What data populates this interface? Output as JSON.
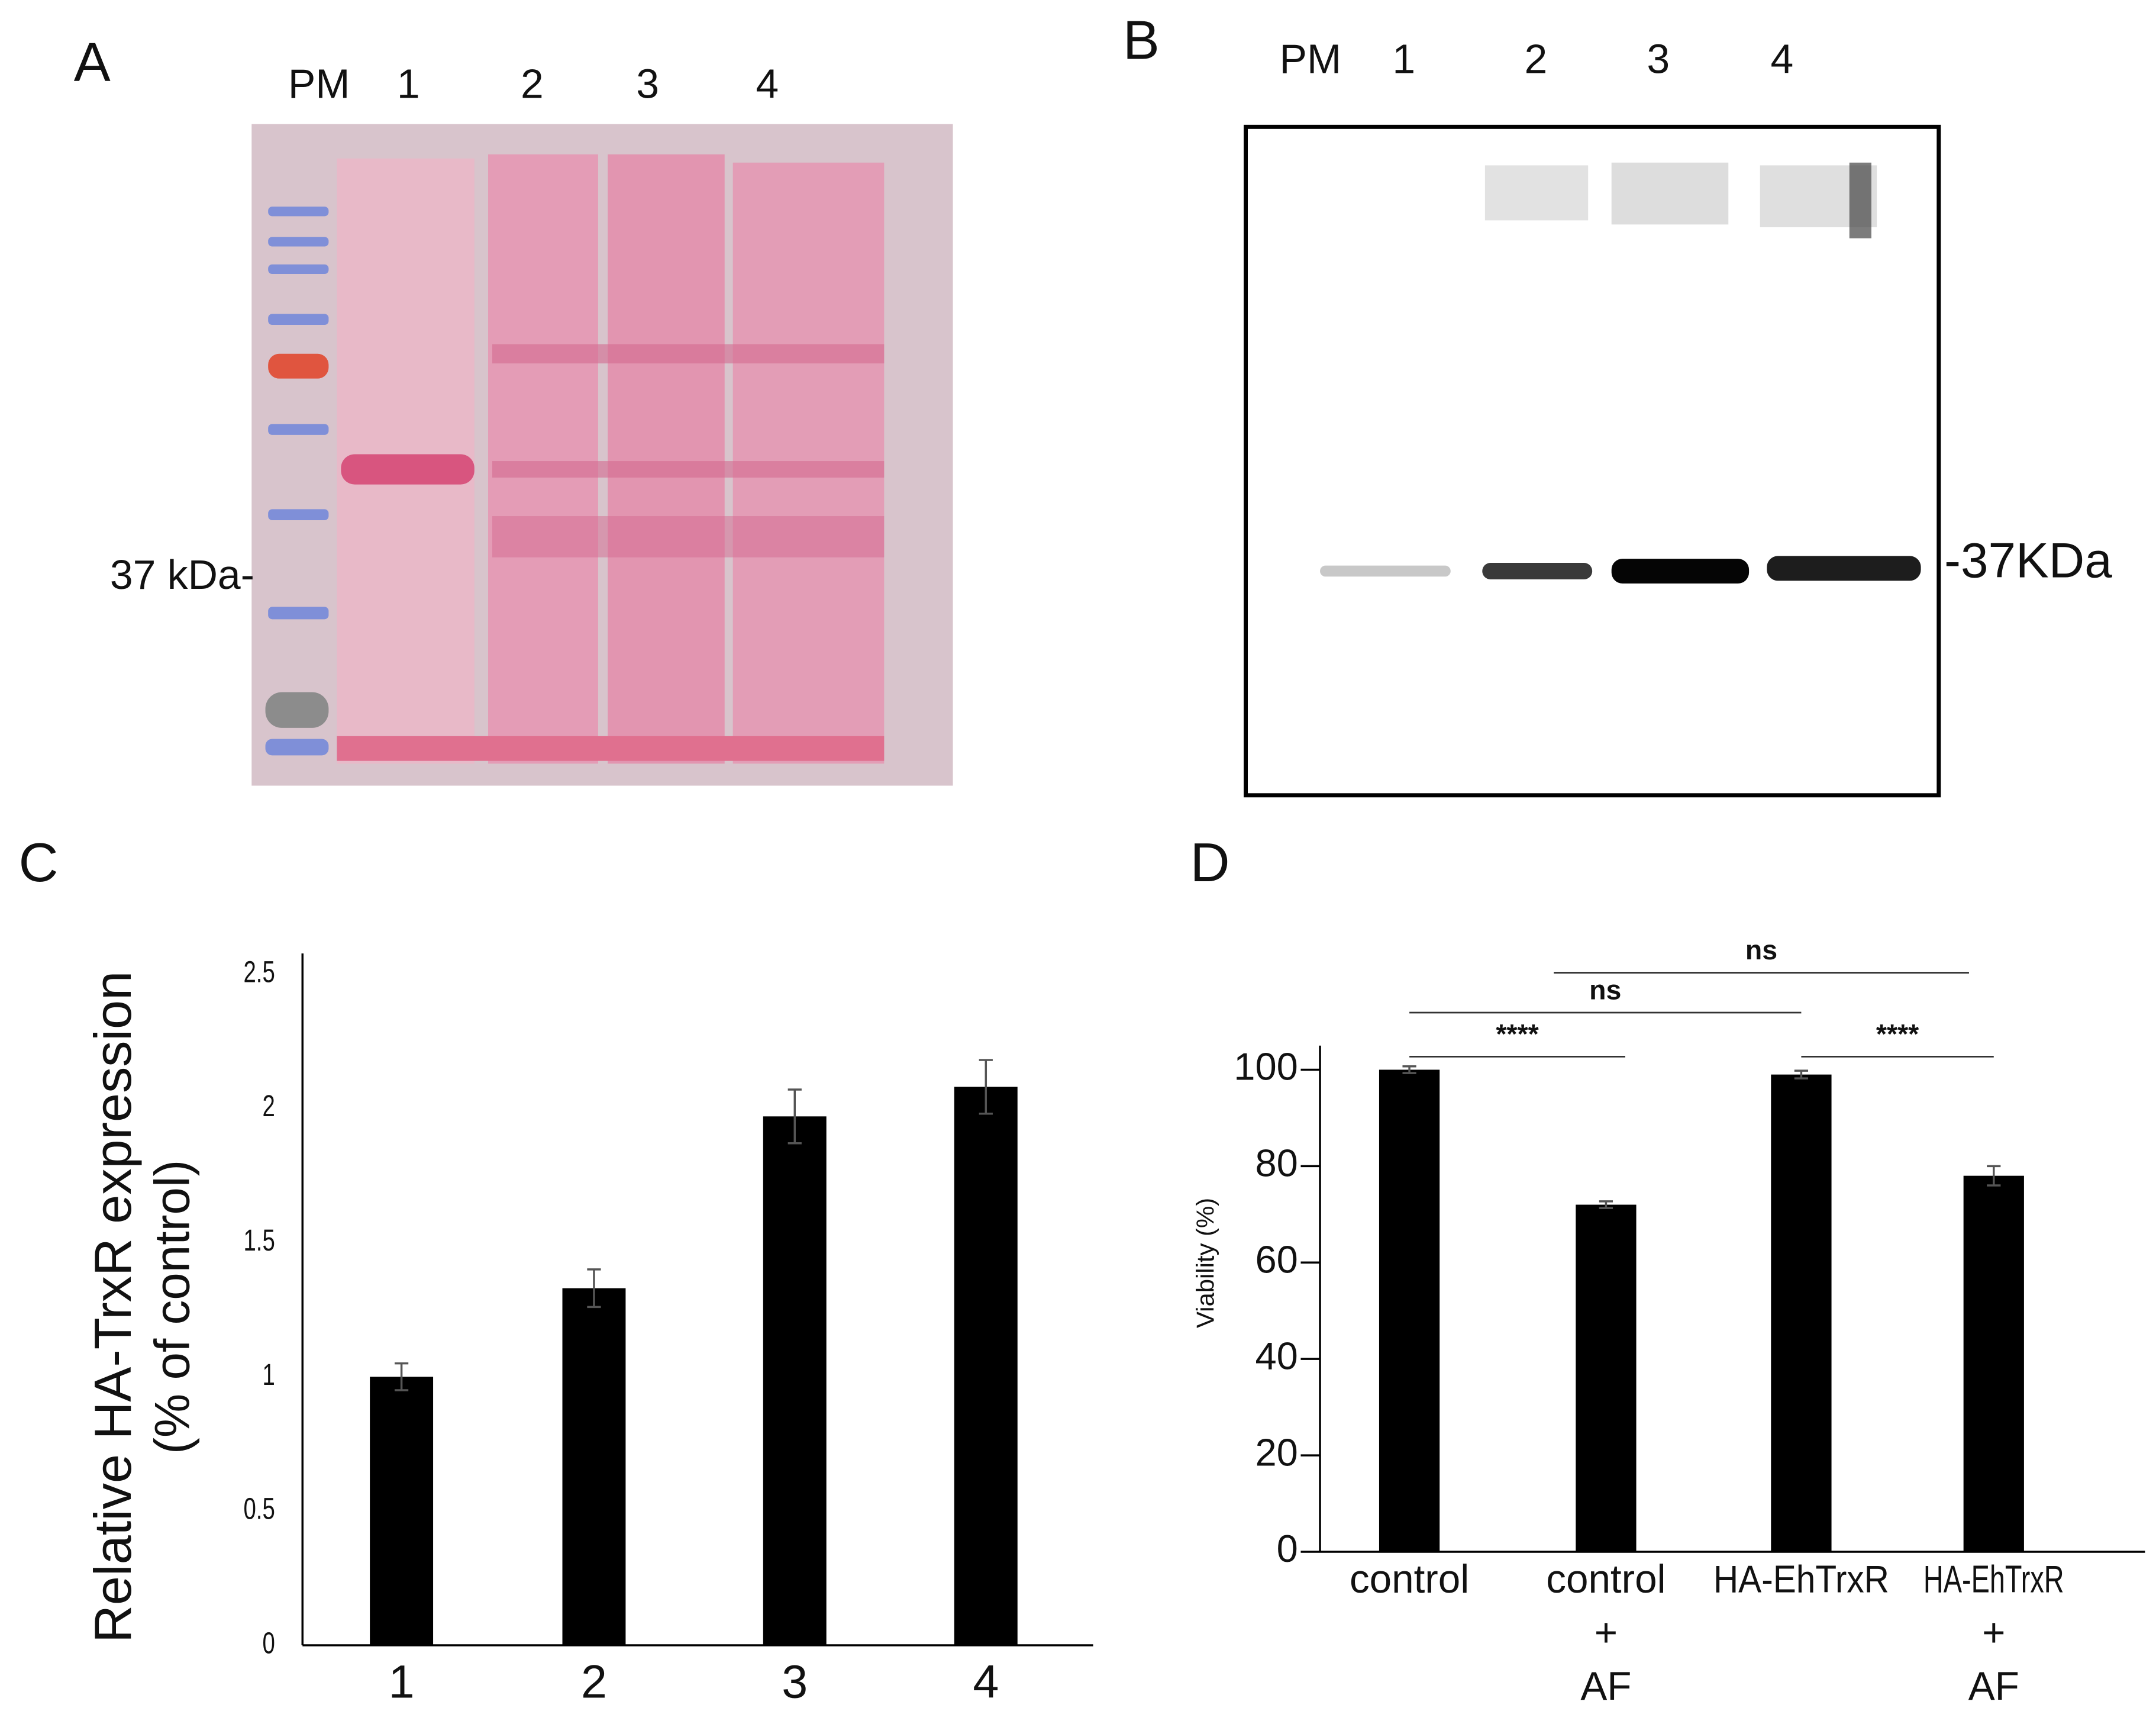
{
  "blots": [
    {
      "panel_label": "A",
      "lane_labels": [
        "PM",
        "1",
        "2",
        "3",
        "4"
      ],
      "marker_label": "37 kDa-"
    },
    {
      "panel_label": "B",
      "lane_labels": [
        "PM",
        "1",
        "2",
        "3",
        "4"
      ],
      "marker_label": "-37KDa"
    }
  ],
  "chart_data": [
    {
      "type": "bar",
      "panel_label": "C",
      "y_label": [
        "Relative HA-TrxR expression",
        "(% of control)"
      ],
      "categories": [
        "1",
        "2",
        "3",
        "4"
      ],
      "values": [
        1.0,
        1.33,
        1.97,
        2.08
      ],
      "errors": [
        0.05,
        0.07,
        0.1,
        0.1
      ],
      "color": "#000000",
      "ylim": [
        0,
        2.5
      ],
      "yticks": [
        0,
        0.5,
        1,
        1.5,
        2,
        2.5
      ]
    },
    {
      "type": "bar",
      "panel_label": "D",
      "y_label": [
        "Viability (%)"
      ],
      "categories": [
        [
          "control"
        ],
        [
          "control",
          "+",
          "AF"
        ],
        [
          "HA-EhTrxR"
        ],
        [
          "HA-EhTrxR",
          "+",
          "AF"
        ]
      ],
      "values": [
        100,
        72,
        99,
        78
      ],
      "errors": [
        0.7,
        0.7,
        0.8,
        2
      ],
      "color": "#000000",
      "ylim": [
        0,
        105
      ],
      "yticks": [
        0,
        20,
        40,
        60,
        80,
        100
      ],
      "comparisons": [
        {
          "label": "****",
          "groups": [
            0,
            1
          ]
        },
        {
          "label": "ns",
          "groups": [
            0,
            2
          ]
        },
        {
          "label": "ns",
          "groups": [
            1,
            3
          ]
        },
        {
          "label": "****",
          "groups": [
            2,
            3
          ]
        }
      ]
    }
  ]
}
